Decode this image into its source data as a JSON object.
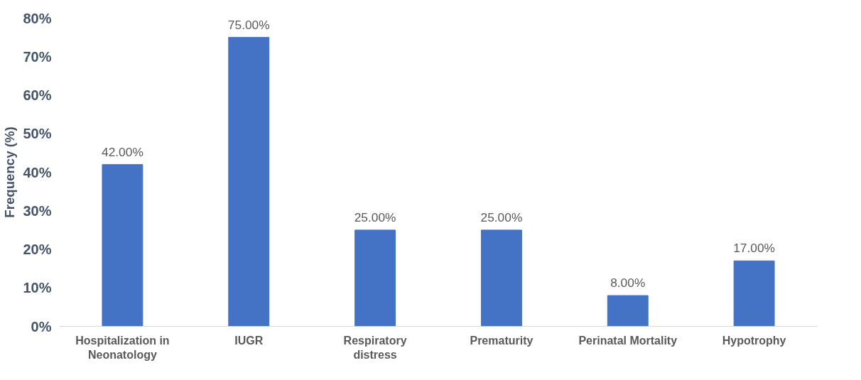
{
  "chart_data": {
    "type": "bar",
    "ylabel": "Frequency (%)",
    "categories": [
      "Hospitalization in\nNeonatology",
      "IUGR",
      "Respiratory\ndistress",
      "Prematurity",
      "Perinatal Mortality",
      "Hypotrophy"
    ],
    "values": [
      42,
      75,
      25,
      25,
      8,
      17
    ],
    "color": "#4472c4",
    "value_labels": [
      "42.00%",
      "75.00%",
      "25.00%",
      "25.00%",
      "8.00%",
      "17.00%"
    ],
    "ylim": [
      0,
      80
    ],
    "yticks": [
      {
        "value": 0,
        "label": "0%"
      },
      {
        "value": 10,
        "label": "10%"
      },
      {
        "value": 20,
        "label": "20%"
      },
      {
        "value": 30,
        "label": "30%"
      },
      {
        "value": 40,
        "label": "40%"
      },
      {
        "value": 50,
        "label": "50%"
      },
      {
        "value": 60,
        "label": "60%"
      },
      {
        "value": 70,
        "label": "70%"
      },
      {
        "value": 80,
        "label": "80%"
      }
    ],
    "grid": false
  }
}
